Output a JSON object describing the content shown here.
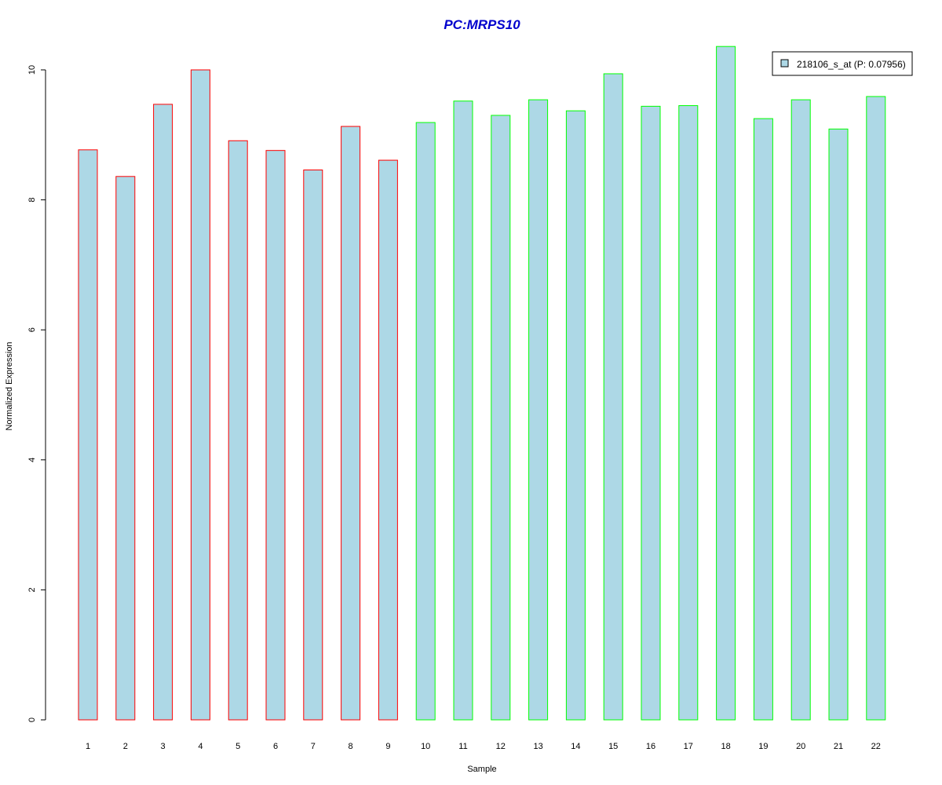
{
  "chart_data": {
    "type": "bar",
    "title": "PC:MRPS10",
    "xlabel": "Sample",
    "ylabel": "Normalized Expression",
    "categories": [
      "1",
      "2",
      "3",
      "4",
      "5",
      "6",
      "7",
      "8",
      "9",
      "10",
      "11",
      "12",
      "13",
      "14",
      "15",
      "16",
      "17",
      "18",
      "19",
      "20",
      "21",
      "22"
    ],
    "values": [
      8.77,
      8.36,
      9.47,
      10.0,
      8.91,
      8.76,
      8.46,
      9.13,
      8.61,
      9.19,
      9.52,
      9.3,
      9.54,
      9.37,
      9.94,
      9.44,
      9.45,
      10.36,
      9.25,
      9.54,
      9.09,
      9.59
    ],
    "groups": [
      1,
      1,
      1,
      1,
      1,
      1,
      1,
      1,
      1,
      2,
      2,
      2,
      2,
      2,
      2,
      2,
      2,
      2,
      2,
      2,
      2,
      2
    ],
    "yticks": [
      0,
      2,
      4,
      6,
      8,
      10
    ],
    "ylim": [
      0,
      10.5
    ],
    "grid": false,
    "legend": {
      "placement": "top-right",
      "entries": [
        "218106_s_at (P: 0.07956)"
      ]
    },
    "colors": {
      "bar_fill": "#add8e6",
      "group1_border": "#ff0000",
      "group2_border": "#00ff00",
      "title": "#0000cd",
      "axis": "#000000"
    }
  }
}
